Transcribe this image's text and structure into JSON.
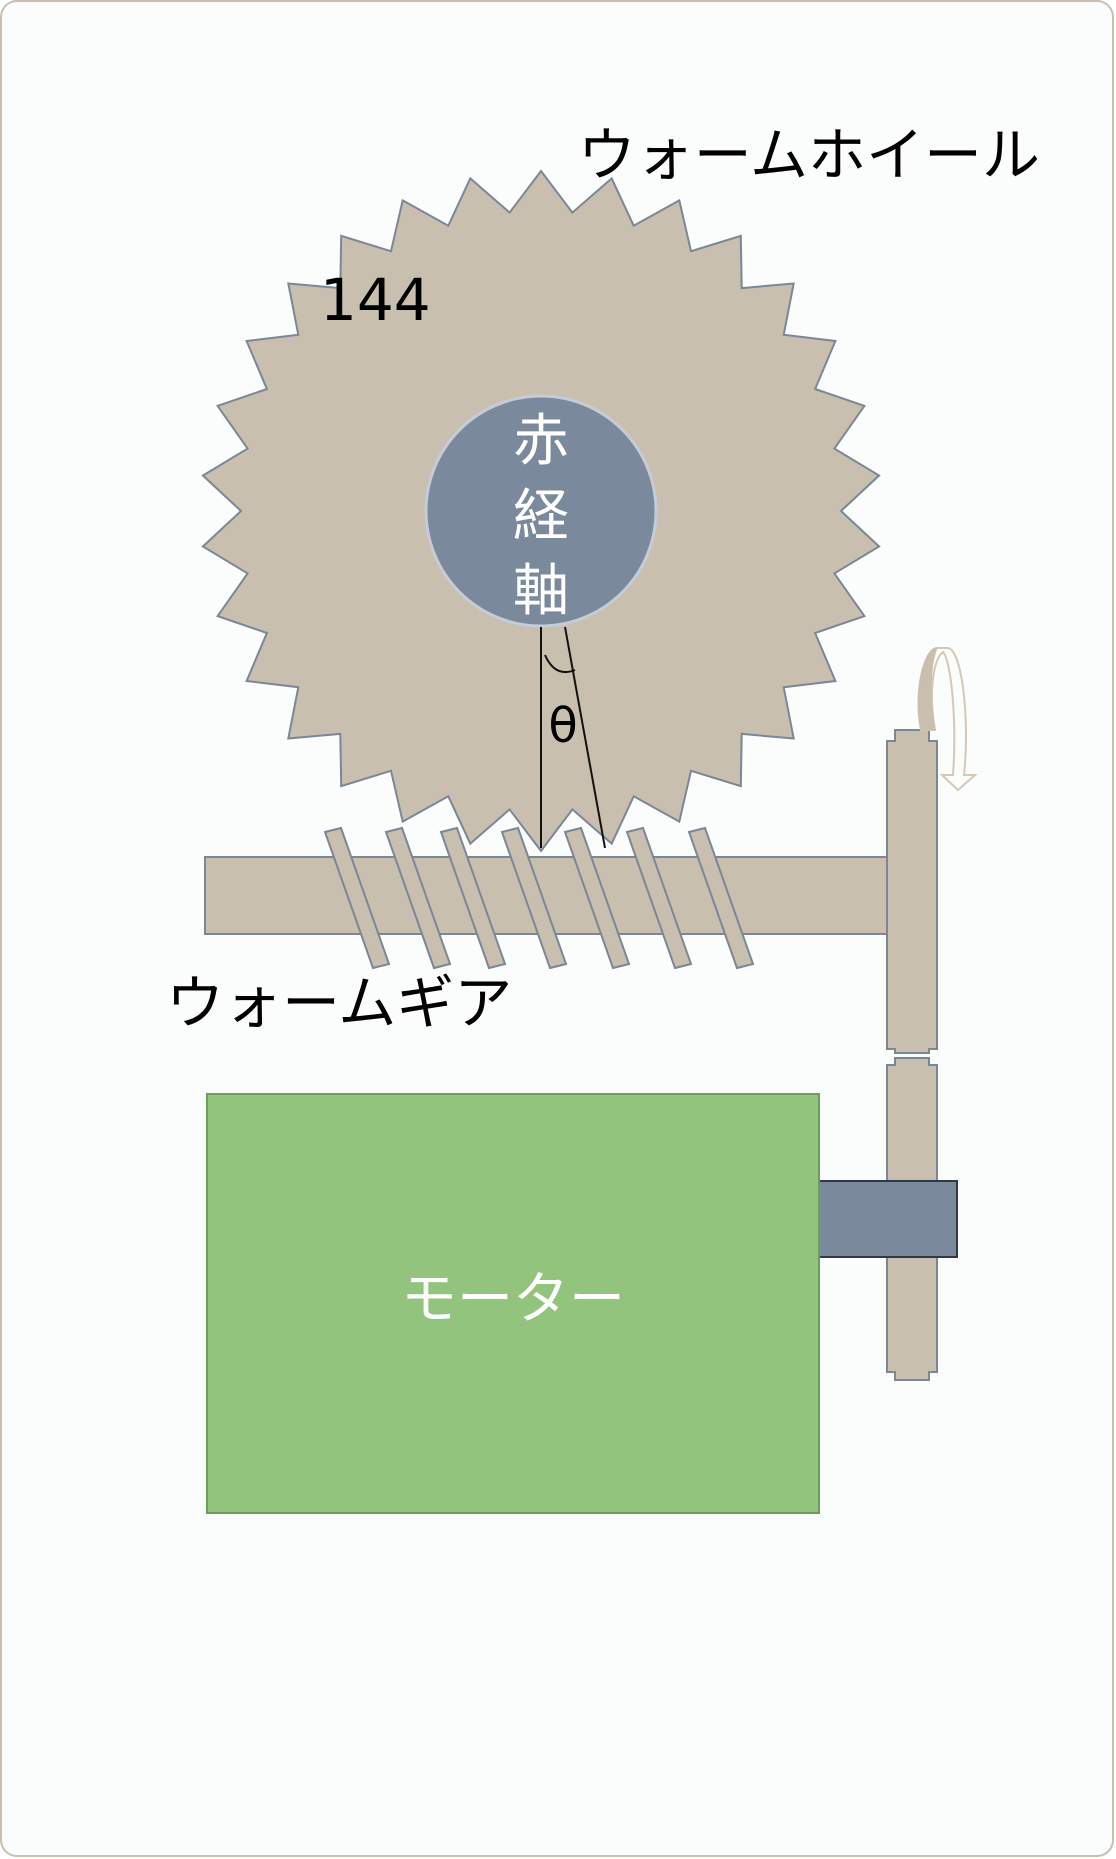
{
  "labels": {
    "worm_wheel": "ウォームホイール",
    "tooth_count": "144",
    "ra_axis_line1": "赤",
    "ra_axis_line2": "経",
    "ra_axis_line3": "軸",
    "angle": "θ",
    "worm_gear": "ウォームギア",
    "motor": "モーター"
  },
  "colors": {
    "background_panel": "#fbfcfc",
    "panel_border": "#c9bfae",
    "part_fill": "#c9bfae",
    "part_stroke": "#7a8797",
    "axis_fill": "#7a8a9c",
    "motor_fill": "#93c47d",
    "motor_stroke": "#6a9f55",
    "text_dark": "#000000",
    "text_light": "#ffffff"
  },
  "icons": {
    "rotation": "curved-arrow-icon"
  }
}
